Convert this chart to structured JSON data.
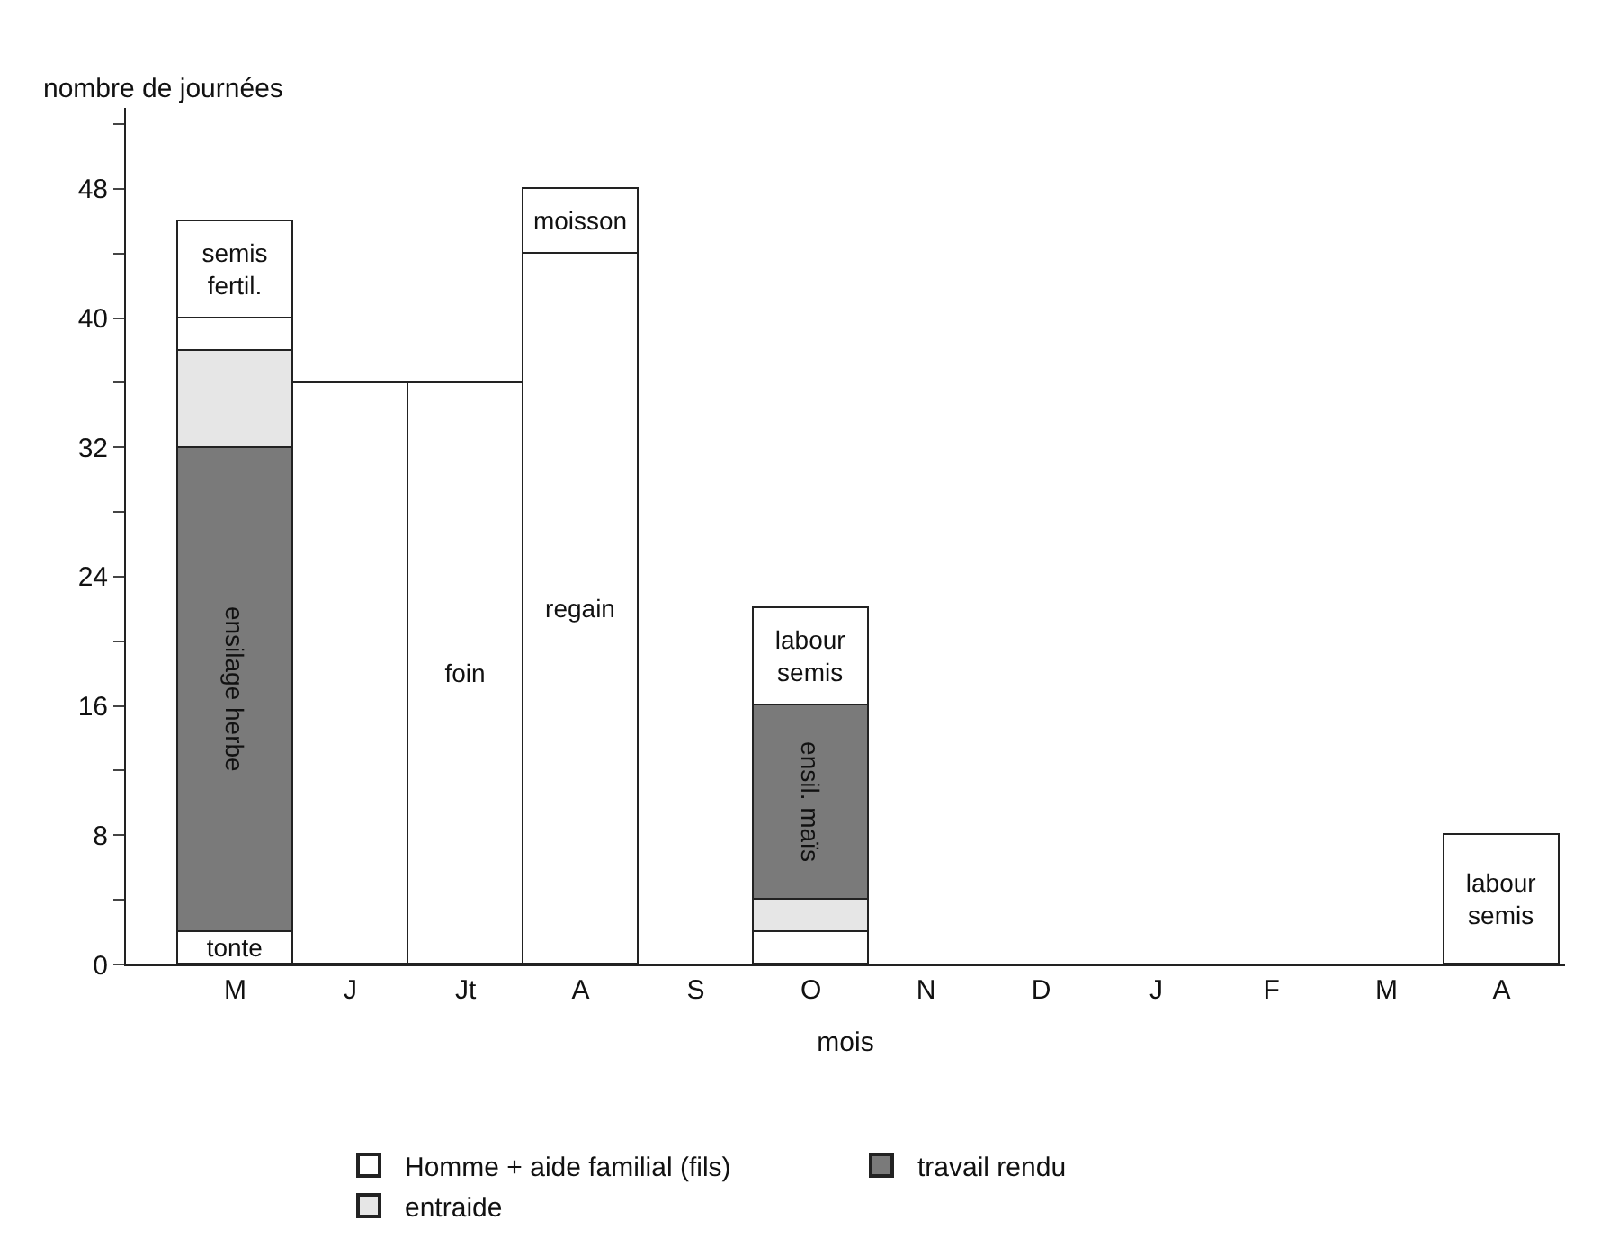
{
  "chart_data": {
    "type": "bar",
    "stacked": true,
    "ylabel": "nombre de journées",
    "xlabel": "mois",
    "categories": [
      "M",
      "J",
      "Jt",
      "A",
      "S",
      "O",
      "N",
      "D",
      "J",
      "F",
      "M",
      "A"
    ],
    "ylim": [
      0,
      53
    ],
    "yticks": [
      0,
      {
        "value": 4,
        "label": null
      },
      8,
      {
        "value": 12,
        "label": null
      },
      16,
      {
        "value": 20,
        "label": null
      },
      24,
      {
        "value": 28,
        "label": null
      },
      32,
      {
        "value": 36,
        "label": null
      },
      40,
      {
        "value": 44,
        "label": null
      },
      48,
      {
        "value": 52,
        "label": null
      }
    ],
    "legend": "bottom",
    "series": [
      {
        "name": "Homme + aide familial (fils)",
        "color": "#ffffff",
        "values": [
          2,
          36,
          36,
          44,
          null,
          2,
          null,
          null,
          null,
          null,
          null,
          8
        ],
        "value_labels": [
          "tonte",
          null,
          "foin",
          "regain",
          null,
          null,
          null,
          null,
          null,
          null,
          null,
          "labour\nsemis"
        ]
      },
      {
        "color": "#e6e6e6",
        "values": [
          null,
          null,
          null,
          null,
          null,
          2,
          null,
          null,
          null,
          null,
          null,
          null
        ]
      },
      {
        "name": "travail rendu",
        "color": "#7a7a7a",
        "values": [
          30,
          null,
          null,
          null,
          null,
          12,
          null,
          null,
          null,
          null,
          null,
          null
        ],
        "value_labels": [
          "ensilage herbe",
          null,
          null,
          null,
          null,
          "ensil. maïs",
          null,
          null,
          null,
          null,
          null,
          null
        ]
      },
      {
        "name": "entraide",
        "color": "#e6e6e6",
        "values": [
          6,
          null,
          null,
          null,
          null,
          null,
          null,
          null,
          null,
          null,
          null,
          null
        ]
      },
      {
        "color": "#ffffff",
        "values": [
          2,
          null,
          null,
          null,
          null,
          null,
          null,
          null,
          null,
          null,
          null,
          null
        ]
      },
      {
        "color": "#ffffff",
        "values": [
          6,
          null,
          null,
          4,
          null,
          6,
          null,
          null,
          null,
          null,
          null,
          null
        ],
        "value_labels": [
          "semis\nfertil.",
          null,
          null,
          "moisson",
          null,
          "labour\nsemis",
          null,
          null,
          null,
          null,
          null,
          null
        ]
      }
    ]
  }
}
